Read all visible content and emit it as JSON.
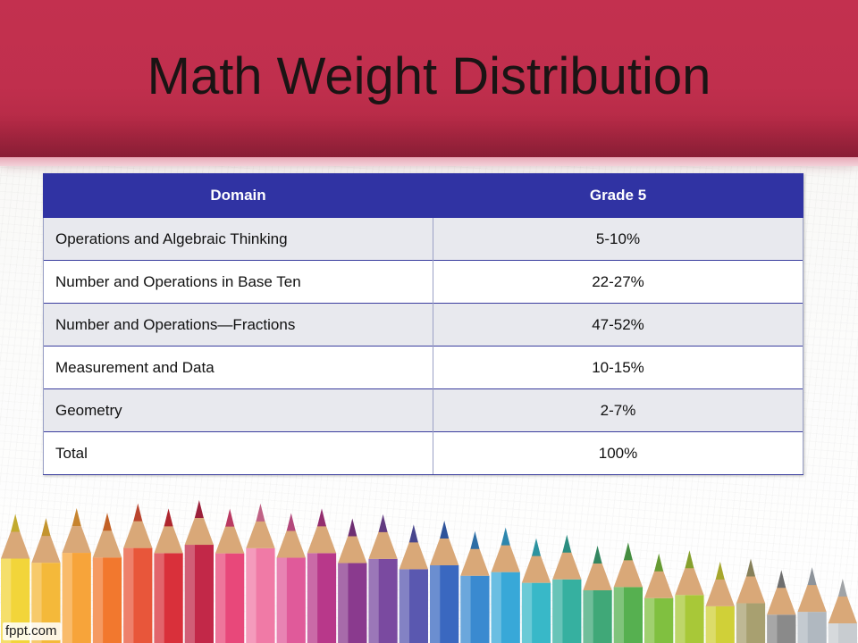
{
  "slide": {
    "title": "Math Weight Distribution",
    "logo_text": "fppt.com"
  },
  "table": {
    "headers": [
      "Domain",
      "Grade 5"
    ],
    "rows": [
      {
        "domain": "Operations and Algebraic Thinking",
        "grade5": "5-10%"
      },
      {
        "domain": "Number and Operations in Base Ten",
        "grade5": "22-27%"
      },
      {
        "domain": "Number and Operations—Fractions",
        "grade5": "47-52%"
      },
      {
        "domain": "Measurement and Data",
        "grade5": "10-15%"
      },
      {
        "domain": "Geometry",
        "grade5": "2-7%"
      },
      {
        "domain": "Total",
        "grade5": "100%"
      }
    ]
  },
  "colors": {
    "banner": "#c3304f",
    "header_bg": "#3033a3",
    "row_alt": "#e8e9ee"
  },
  "decorations": {
    "icon": "colored-pencils-illustration",
    "pencil_colors": [
      "#f2d53a",
      "#f4b93a",
      "#f7a43a",
      "#f2782e",
      "#e8563a",
      "#d9303a",
      "#c22848",
      "#e8487a",
      "#f07aa6",
      "#e05a9a",
      "#b8388a",
      "#8a3a8e",
      "#7a4aa0",
      "#5a58b0",
      "#3a68c0",
      "#3a8ad0",
      "#38a8d8",
      "#38b8c8",
      "#36b0a0",
      "#40a878",
      "#56b050",
      "#80c040",
      "#a8c838",
      "#d0d038",
      "#a8a070",
      "#8a8a8a",
      "#b0b8c0",
      "#c8ccd0"
    ]
  }
}
